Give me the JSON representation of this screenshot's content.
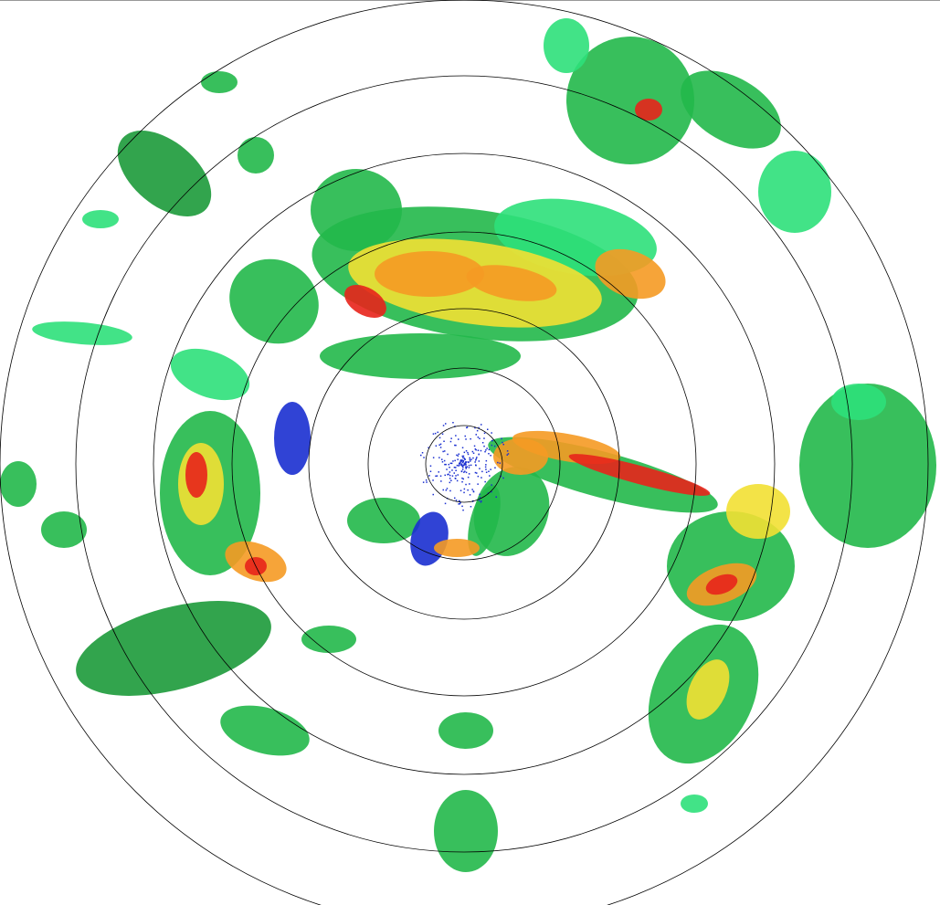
{
  "radar": {
    "range_ring_count": 7,
    "colors": {
      "ring": "#000000",
      "weak_blue": "#1a2fd0",
      "light_green": "#2ee07a",
      "green": "#22b84a",
      "dark_green": "#1c9a3a",
      "yellow": "#f2e033",
      "orange": "#f59a23",
      "red": "#e8231b"
    }
  }
}
